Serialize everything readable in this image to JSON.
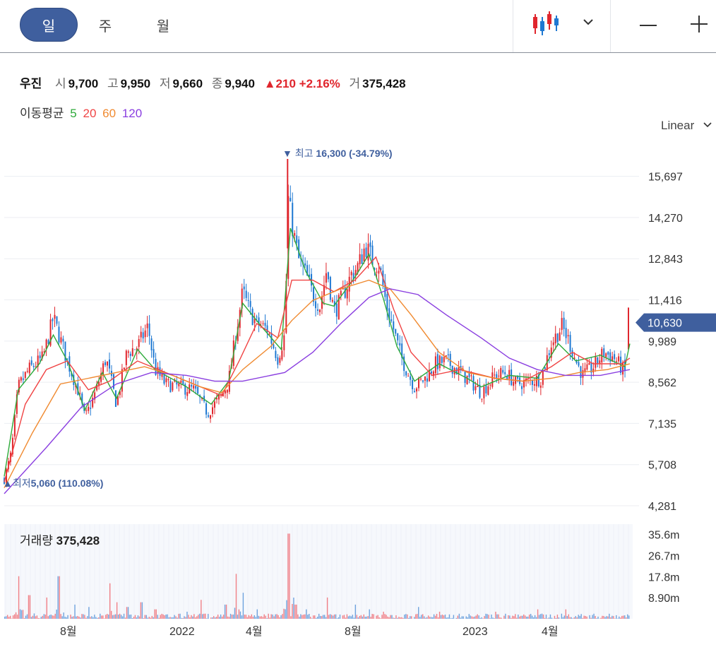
{
  "toolbar": {
    "periods": [
      "일",
      "주",
      "월"
    ],
    "active_period": "일"
  },
  "quote": {
    "name": "우진",
    "open_label": "시",
    "open": "9,700",
    "high_label": "고",
    "high": "9,950",
    "low_label": "저",
    "low": "9,660",
    "close_label": "종",
    "close": "9,940",
    "change": "210",
    "change_pct": "+2.16%",
    "volume_label": "거",
    "volume": "375,428"
  },
  "moving_average": {
    "label": "이동평균",
    "periods": [
      {
        "value": "5",
        "color": "#2eaa3a"
      },
      {
        "value": "20",
        "color": "#f04444"
      },
      {
        "value": "60",
        "color": "#f08a30"
      },
      {
        "value": "120",
        "color": "#8a3ee0"
      }
    ]
  },
  "scale": "Linear",
  "colors": {
    "accent": "#3f5f9e",
    "up": "#e0262d",
    "down": "#1e78d2"
  },
  "chart_data": {
    "type": "candlestick",
    "y_ticks": [
      "15,697",
      "14,270",
      "12,843",
      "11,416",
      "9,989",
      "8,562",
      "7,135",
      "5,708",
      "4,281"
    ],
    "ylim": [
      4281,
      16300
    ],
    "x_ticks": [
      "8월",
      "2022",
      "4월",
      "8월",
      "2023",
      "4월"
    ],
    "current_price": "10,630",
    "high_annotation": {
      "label": "최고",
      "value": "16,300",
      "pct": "(-34.79%)",
      "y": 16300
    },
    "low_annotation": {
      "label": "최저",
      "value": "5,060",
      "pct": "(110.08%)",
      "y": 5060
    },
    "price_trend": [
      [
        0,
        5200
      ],
      [
        10,
        6100
      ],
      [
        20,
        8400
      ],
      [
        35,
        9000
      ],
      [
        55,
        9400
      ],
      [
        70,
        10800
      ],
      [
        90,
        9300
      ],
      [
        105,
        8300
      ],
      [
        115,
        7300
      ],
      [
        130,
        8200
      ],
      [
        145,
        9400
      ],
      [
        160,
        7800
      ],
      [
        175,
        9600
      ],
      [
        190,
        9800
      ],
      [
        205,
        10500
      ],
      [
        215,
        9000
      ],
      [
        230,
        8500
      ],
      [
        250,
        8400
      ],
      [
        270,
        8300
      ],
      [
        290,
        7500
      ],
      [
        310,
        8100
      ],
      [
        320,
        8600
      ],
      [
        330,
        10200
      ],
      [
        340,
        11700
      ],
      [
        350,
        11000
      ],
      [
        360,
        10600
      ],
      [
        375,
        10400
      ],
      [
        390,
        9400
      ],
      [
        400,
        10200
      ],
      [
        405,
        14900
      ],
      [
        412,
        13800
      ],
      [
        420,
        12800
      ],
      [
        430,
        12300
      ],
      [
        440,
        11600
      ],
      [
        450,
        11200
      ],
      [
        460,
        12500
      ],
      [
        470,
        11000
      ],
      [
        480,
        11400
      ],
      [
        495,
        12300
      ],
      [
        505,
        12600
      ],
      [
        515,
        13300
      ],
      [
        525,
        12800
      ],
      [
        535,
        12600
      ],
      [
        545,
        11200
      ],
      [
        555,
        10400
      ],
      [
        565,
        9500
      ],
      [
        575,
        8900
      ],
      [
        585,
        8400
      ],
      [
        600,
        8700
      ],
      [
        615,
        9200
      ],
      [
        630,
        9300
      ],
      [
        650,
        8900
      ],
      [
        665,
        8600
      ],
      [
        680,
        8200
      ],
      [
        700,
        8800
      ],
      [
        715,
        8900
      ],
      [
        730,
        8500
      ],
      [
        750,
        8600
      ],
      [
        765,
        8700
      ],
      [
        780,
        9900
      ],
      [
        795,
        10500
      ],
      [
        805,
        10000
      ],
      [
        815,
        9300
      ],
      [
        825,
        8800
      ],
      [
        840,
        9100
      ],
      [
        855,
        9600
      ],
      [
        870,
        9400
      ],
      [
        885,
        8900
      ],
      [
        890,
        10630
      ]
    ],
    "ma5_trend": [
      [
        0,
        5300
      ],
      [
        20,
        8300
      ],
      [
        50,
        9200
      ],
      [
        70,
        10200
      ],
      [
        90,
        9300
      ],
      [
        115,
        7600
      ],
      [
        140,
        8900
      ],
      [
        160,
        8000
      ],
      [
        190,
        9700
      ],
      [
        215,
        9000
      ],
      [
        260,
        8400
      ],
      [
        295,
        7800
      ],
      [
        320,
        8600
      ],
      [
        340,
        11300
      ],
      [
        370,
        10400
      ],
      [
        395,
        9700
      ],
      [
        408,
        13900
      ],
      [
        430,
        12400
      ],
      [
        455,
        11300
      ],
      [
        470,
        11200
      ],
      [
        500,
        12200
      ],
      [
        520,
        13000
      ],
      [
        540,
        11500
      ],
      [
        560,
        9800
      ],
      [
        585,
        8600
      ],
      [
        620,
        9200
      ],
      [
        660,
        8700
      ],
      [
        680,
        8400
      ],
      [
        720,
        8800
      ],
      [
        760,
        8700
      ],
      [
        790,
        9900
      ],
      [
        815,
        9300
      ],
      [
        850,
        9500
      ],
      [
        885,
        9100
      ],
      [
        892,
        9900
      ]
    ],
    "ma20_trend": [
      [
        0,
        5100
      ],
      [
        30,
        7800
      ],
      [
        60,
        9000
      ],
      [
        90,
        9300
      ],
      [
        120,
        8300
      ],
      [
        150,
        8600
      ],
      [
        190,
        9300
      ],
      [
        230,
        8900
      ],
      [
        270,
        8500
      ],
      [
        310,
        8100
      ],
      [
        335,
        9300
      ],
      [
        360,
        10600
      ],
      [
        390,
        10100
      ],
      [
        410,
        12100
      ],
      [
        440,
        12100
      ],
      [
        470,
        11700
      ],
      [
        500,
        12100
      ],
      [
        530,
        12900
      ],
      [
        555,
        11100
      ],
      [
        580,
        9600
      ],
      [
        610,
        8800
      ],
      [
        650,
        9000
      ],
      [
        700,
        8700
      ],
      [
        740,
        8600
      ],
      [
        780,
        9100
      ],
      [
        810,
        9600
      ],
      [
        840,
        9200
      ],
      [
        880,
        9200
      ],
      [
        892,
        9400
      ]
    ],
    "ma60_trend": [
      [
        0,
        4900
      ],
      [
        40,
        6800
      ],
      [
        80,
        8500
      ],
      [
        120,
        8700
      ],
      [
        160,
        8900
      ],
      [
        200,
        9100
      ],
      [
        240,
        8800
      ],
      [
        280,
        8400
      ],
      [
        310,
        8200
      ],
      [
        340,
        9000
      ],
      [
        380,
        9800
      ],
      [
        410,
        10700
      ],
      [
        440,
        11400
      ],
      [
        480,
        11800
      ],
      [
        520,
        12100
      ],
      [
        550,
        11800
      ],
      [
        580,
        10900
      ],
      [
        620,
        9600
      ],
      [
        660,
        8900
      ],
      [
        700,
        8700
      ],
      [
        740,
        8600
      ],
      [
        780,
        8700
      ],
      [
        820,
        8900
      ],
      [
        860,
        9000
      ],
      [
        892,
        9200
      ]
    ],
    "ma120_trend": [
      [
        0,
        4700
      ],
      [
        60,
        6300
      ],
      [
        110,
        7700
      ],
      [
        160,
        8500
      ],
      [
        210,
        8900
      ],
      [
        260,
        8800
      ],
      [
        300,
        8600
      ],
      [
        340,
        8600
      ],
      [
        400,
        8900
      ],
      [
        440,
        9600
      ],
      [
        480,
        10600
      ],
      [
        520,
        11500
      ],
      [
        550,
        11800
      ],
      [
        590,
        11600
      ],
      [
        630,
        10900
      ],
      [
        680,
        10100
      ],
      [
        720,
        9400
      ],
      [
        760,
        9000
      ],
      [
        800,
        8800
      ],
      [
        850,
        8800
      ],
      [
        892,
        9000
      ]
    ],
    "volume": {
      "label": "거래량",
      "value": "375,428",
      "y_ticks": [
        "35.6m",
        "26.7m",
        "17.8m",
        "8.90m"
      ],
      "ylim": [
        0,
        40
      ],
      "spikes": [
        [
          20,
          18
        ],
        [
          35,
          10
        ],
        [
          60,
          9
        ],
        [
          77,
          18
        ],
        [
          100,
          6
        ],
        [
          120,
          5
        ],
        [
          150,
          15
        ],
        [
          160,
          7
        ],
        [
          175,
          5
        ],
        [
          195,
          7
        ],
        [
          215,
          4
        ],
        [
          260,
          3
        ],
        [
          280,
          8
        ],
        [
          315,
          6
        ],
        [
          330,
          19
        ],
        [
          340,
          11
        ],
        [
          360,
          4
        ],
        [
          405,
          36
        ],
        [
          415,
          6
        ],
        [
          430,
          4
        ],
        [
          460,
          9
        ],
        [
          500,
          6
        ],
        [
          520,
          4
        ],
        [
          540,
          3
        ],
        [
          590,
          5
        ],
        [
          620,
          3
        ],
        [
          700,
          3
        ],
        [
          760,
          4
        ],
        [
          800,
          4
        ],
        [
          892,
          9
        ]
      ]
    }
  }
}
